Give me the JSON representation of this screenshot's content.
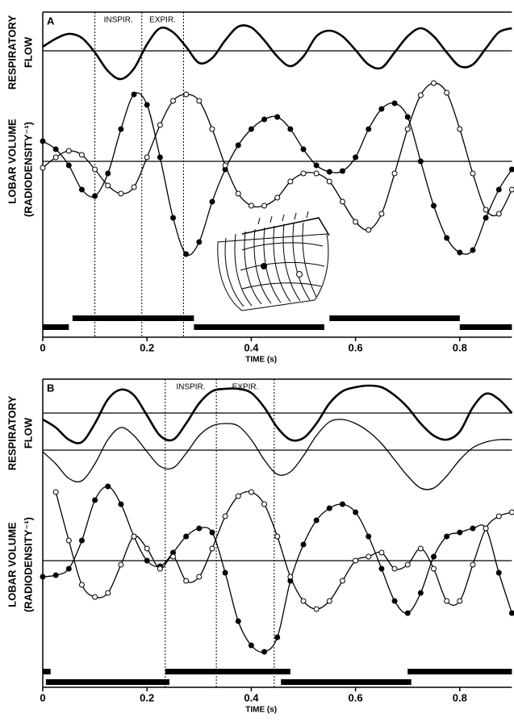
{
  "chart_data": [
    {
      "type": "line",
      "label": "A",
      "ylabels": [
        "RESPIRATORY",
        "FLOW",
        "LOBAR VOLUME",
        "(RADIODENSITY⁻¹)"
      ],
      "xlabel": "TIME (s)",
      "xlim": [
        0,
        0.9
      ],
      "xticks": [
        0,
        0.2,
        0.4,
        0.6,
        0.8
      ],
      "ylim": [
        0,
        380
      ],
      "x": [
        0,
        0.025,
        0.05,
        0.075,
        0.1,
        0.125,
        0.15,
        0.175,
        0.2,
        0.225,
        0.25,
        0.275,
        0.3,
        0.325,
        0.35,
        0.375,
        0.4,
        0.425,
        0.45,
        0.475,
        0.5,
        0.525,
        0.55,
        0.575,
        0.6,
        0.625,
        0.65,
        0.675,
        0.7,
        0.725,
        0.75,
        0.775,
        0.8,
        0.825,
        0.85,
        0.875,
        0.9
      ],
      "series": [
        {
          "color": "#000000",
          "style": "thick",
          "marker": "none",
          "values": [
            337,
            347,
            353,
            348,
            330,
            307,
            297,
            310,
            340,
            360,
            355,
            337,
            317,
            323,
            345,
            362,
            361,
            345,
            325,
            313,
            325,
            350,
            357,
            350,
            333,
            315,
            311,
            330,
            350,
            360,
            350,
            330,
            313,
            315,
            335,
            355,
            360
          ]
        },
        {
          "color": "#000000",
          "style": "thin",
          "marker": "filled",
          "values": [
            220,
            210,
            190,
            160,
            152,
            180,
            235,
            278,
            265,
            200,
            125,
            80,
            95,
            145,
            185,
            215,
            235,
            247,
            250,
            235,
            210,
            190,
            182,
            183,
            200,
            235,
            260,
            267,
            250,
            195,
            140,
            100,
            82,
            85,
            125,
            160,
            185
          ]
        },
        {
          "color": "#000000",
          "style": "thin",
          "marker": "open",
          "values": [
            187,
            200,
            208,
            203,
            185,
            165,
            155,
            163,
            200,
            240,
            270,
            278,
            270,
            235,
            190,
            155,
            140,
            140,
            150,
            170,
            180,
            180,
            170,
            145,
            120,
            110,
            130,
            180,
            235,
            277,
            292,
            280,
            235,
            180,
            135,
            130,
            160
          ]
        }
      ],
      "reference_lines": [
        332,
        195
      ],
      "phase_lines": [
        0.1,
        0.19,
        0.27
      ],
      "phase_labels": [
        "INSPIR.",
        "EXPIR."
      ],
      "phase_bars_top": [
        [
          0.057,
          0.29
        ],
        [
          0.55,
          0.8
        ]
      ],
      "phase_bars_bottom": [
        [
          0,
          0.05
        ],
        [
          0.29,
          0.54
        ],
        [
          0.8,
          0.9
        ]
      ]
    },
    {
      "type": "line",
      "label": "B",
      "ylabels": [
        "RESPIRATORY",
        "FLOW",
        "LOBAR VOLUME",
        "(RADIODENSITY⁻¹)"
      ],
      "xlabel": "TIME (s)",
      "xlim": [
        0,
        0.9
      ],
      "xticks": [
        0,
        0.2,
        0.4,
        0.6,
        0.8
      ],
      "ylim": [
        0,
        370
      ],
      "x": [
        0,
        0.025,
        0.05,
        0.075,
        0.1,
        0.125,
        0.15,
        0.175,
        0.2,
        0.225,
        0.25,
        0.275,
        0.3,
        0.325,
        0.35,
        0.375,
        0.4,
        0.425,
        0.45,
        0.475,
        0.5,
        0.525,
        0.55,
        0.575,
        0.6,
        0.625,
        0.65,
        0.675,
        0.7,
        0.725,
        0.75,
        0.775,
        0.8,
        0.825,
        0.85,
        0.875,
        0.9
      ],
      "series": [
        {
          "color": "#000000",
          "style": "thick",
          "marker": "none",
          "values": [
            320,
            310,
            295,
            292,
            315,
            345,
            357,
            350,
            325,
            300,
            295,
            315,
            340,
            355,
            358,
            358,
            353,
            335,
            310,
            295,
            297,
            315,
            340,
            355,
            360,
            362,
            360,
            350,
            335,
            315,
            300,
            295,
            305,
            335,
            352,
            345,
            328
          ]
        },
        {
          "color": "#000000",
          "style": "thin",
          "marker": "none",
          "values": [
            280,
            265,
            247,
            244,
            265,
            295,
            310,
            300,
            280,
            262,
            260,
            278,
            300,
            312,
            315,
            312,
            295,
            270,
            252,
            255,
            275,
            300,
            317,
            320,
            315,
            305,
            290,
            270,
            250,
            235,
            235,
            250,
            270,
            285,
            292,
            295,
            295
          ]
        },
        {
          "color": "#000000",
          "style": "thin",
          "marker": "filled",
          "values": [
            125,
            127,
            135,
            170,
            220,
            237,
            215,
            175,
            145,
            138,
            155,
            175,
            185,
            180,
            130,
            70,
            40,
            32,
            50,
            120,
            165,
            195,
            210,
            215,
            205,
            175,
            135,
            95,
            80,
            105,
            150,
            175,
            180,
            185,
            185,
            130,
            80
          ]
        },
        {
          "color": "#000000",
          "style": "thin",
          "marker": "open",
          "values": [
            null,
            230,
            170,
            115,
            100,
            105,
            140,
            175,
            160,
            135,
            150,
            120,
            125,
            160,
            200,
            225,
            230,
            215,
            175,
            125,
            95,
            85,
            95,
            120,
            145,
            150,
            155,
            135,
            140,
            160,
            135,
            95,
            95,
            140,
            185,
            200,
            205
          ]
        }
      ],
      "reference_lines": [
        328,
        282,
        145
      ],
      "phase_lines": [
        0.235,
        0.333,
        0.444
      ],
      "phase_labels": [
        "INSPIR.",
        "EXPIR."
      ],
      "phase_bars_top": [
        [
          0,
          0.015
        ],
        [
          0.235,
          0.475
        ],
        [
          0.7,
          0.9
        ]
      ],
      "phase_bars_bottom": [
        [
          0.006,
          0.243
        ],
        [
          0.457,
          0.707
        ]
      ]
    }
  ]
}
